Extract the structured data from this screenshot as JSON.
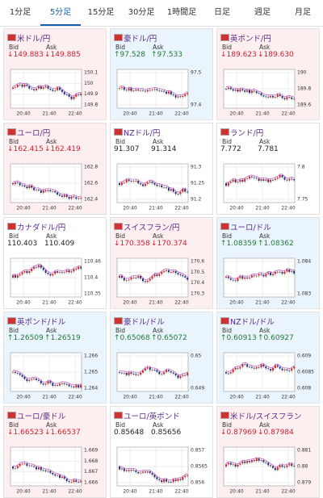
{
  "tabs": [
    "1分足",
    "5分足",
    "15分足",
    "30分足",
    "1時間足",
    "日足",
    "週足",
    "月足"
  ],
  "bid_label": "Bid",
  "ask_label": "Ask",
  "times": [
    "20:40",
    "21:40",
    "22:40"
  ],
  "cards": [
    {
      "name": "米ドル/円",
      "bid": "↓149.883",
      "ask": "↓149.885",
      "ticks": [
        "150.1",
        "150",
        "149.9",
        "149.8"
      ]
    },
    {
      "name": "豪ドル/円",
      "bid": "↑97.528",
      "ask": "↑97.533",
      "ticks": [
        "97.5",
        "97.4"
      ]
    },
    {
      "name": "英ポンド/円",
      "bid": "↓189.623",
      "ask": "↓189.630",
      "ticks": [
        "190",
        "189.8",
        "189.6"
      ]
    },
    {
      "name": "ユーロ/円",
      "bid": "↓162.415",
      "ask": "↓162.419",
      "ticks": [
        "162.8",
        "162.6",
        "162.4"
      ]
    },
    {
      "name": "NZドル/円",
      "bid": "91.307",
      "ask": "91.314",
      "ticks": [
        "91.3",
        "91.25",
        "91.2"
      ]
    },
    {
      "name": "ランド/円",
      "bid": "7.772",
      "ask": "7.781",
      "ticks": [
        "7.8",
        "7.75"
      ]
    },
    {
      "name": "カナダドル/円",
      "bid": "110.403",
      "ask": "110.409",
      "ticks": [
        "110.46",
        "110.4",
        "110.35"
      ]
    },
    {
      "name": "スイスフラン/円",
      "bid": "↓170.358",
      "ask": "↓170.374",
      "ticks": [
        "170.6",
        "170.5",
        "170.4",
        "170.3"
      ]
    },
    {
      "name": "ユーロ/ドル",
      "bid": "↑1.08359",
      "ask": "↑1.08362",
      "ticks": [
        "1.084",
        "1.083"
      ]
    },
    {
      "name": "英ポンド/ドル",
      "bid": "↑1.26509",
      "ask": "↑1.26519",
      "ticks": [
        "1.266",
        "1.265",
        "1.264"
      ]
    },
    {
      "name": "豪ドル/ドル",
      "bid": "↑0.65068",
      "ask": "↑0.65072",
      "ticks": [
        "0.65",
        "0.649"
      ]
    },
    {
      "name": "NZドル/ドル",
      "bid": "↑0.60913",
      "ask": "↑0.60927",
      "ticks": [
        "0.609",
        "0.6085",
        "0.608"
      ]
    },
    {
      "name": "ユーロ/豪ドル",
      "bid": "↓1.66523",
      "ask": "↓1.66537",
      "ticks": [
        "1.669",
        "1.668",
        "1.667",
        "1.666"
      ]
    },
    {
      "name": "ユーロ/英ポンド",
      "bid": "0.85648",
      "ask": "0.85656",
      "ticks": [
        "0.857",
        "0.8565",
        "0.856"
      ]
    },
    {
      "name": "米ドル/スイスフラン",
      "bid": "↓0.87969",
      "ask": "↓0.87984",
      "ticks": [
        "0.881",
        "0.88",
        "0.879"
      ]
    }
  ]
}
